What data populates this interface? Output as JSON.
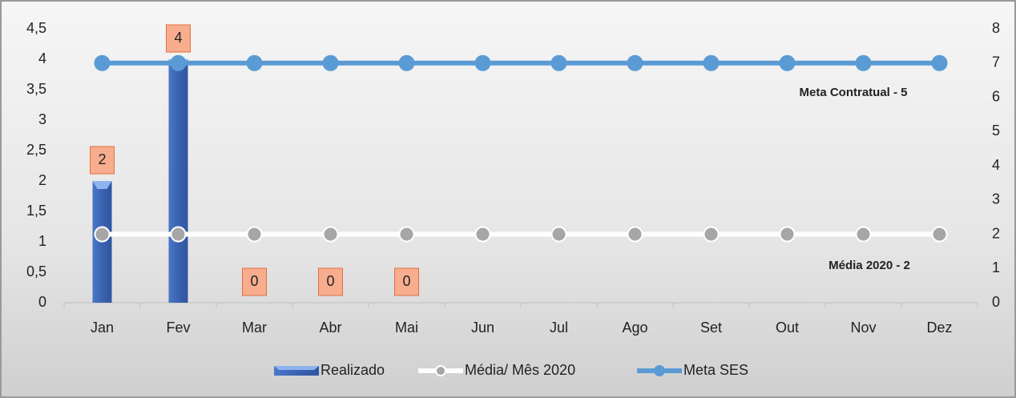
{
  "chart_data": {
    "type": "bar",
    "categories": [
      "Jan",
      "Fev",
      "Mar",
      "Abr",
      "Mai",
      "Jun",
      "Jul",
      "Ago",
      "Set",
      "Out",
      "Nov",
      "Dez"
    ],
    "series": [
      {
        "name": "Realizado",
        "type": "bar",
        "color": "#4472c4",
        "values": [
          2,
          4,
          0,
          0,
          0,
          null,
          null,
          null,
          null,
          null,
          null,
          null
        ]
      },
      {
        "name": "Média/ Mês 2020",
        "type": "line",
        "axis": "y2",
        "color": "#ffffff",
        "marker_color": "#a6a6a6",
        "values": [
          2,
          2,
          2,
          2,
          2,
          2,
          2,
          2,
          2,
          2,
          2,
          2
        ]
      },
      {
        "name": "Meta SES",
        "type": "line",
        "axis": "y2",
        "color": "#5b9bd5",
        "marker_color": "#5b9bd5",
        "values": [
          7,
          7,
          7,
          7,
          7,
          7,
          7,
          7,
          7,
          7,
          7,
          7
        ]
      }
    ],
    "ylim": [
      0,
      4.5
    ],
    "yticks": [
      0,
      {
        "value": 0.5,
        "label": "0,5"
      },
      1,
      {
        "value": 1.5,
        "label": "1,5"
      },
      2,
      {
        "value": 2.5,
        "label": "2,5"
      },
      3,
      {
        "value": 3.5,
        "label": "3,5"
      },
      4,
      {
        "value": 4.5,
        "label": "4,5"
      }
    ],
    "y2lim": [
      0,
      8
    ],
    "y2ticks": [
      0,
      1,
      2,
      3,
      4,
      5,
      6,
      7,
      8
    ],
    "annotations": [
      "Meta  Contratual - 5",
      "Média   2020 - 2"
    ],
    "legend": "bottom"
  }
}
